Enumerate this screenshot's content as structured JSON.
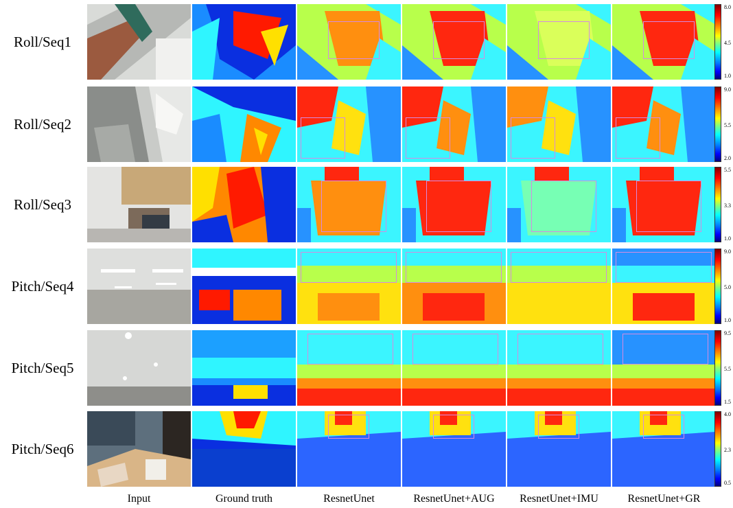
{
  "columns": [
    "Input",
    "Ground truth",
    "ResnetUnet",
    "ResnetUnet+AUG",
    "ResnetUnet+IMU",
    "ResnetUnet+GR"
  ],
  "rows": [
    {
      "label": "Roll/Seq1",
      "ticks": [
        "8.0",
        "4.5",
        "1.0"
      ]
    },
    {
      "label": "Roll/Seq2",
      "ticks": [
        "9.0",
        "5.5",
        "2.0"
      ]
    },
    {
      "label": "Roll/Seq3",
      "ticks": [
        "5.5",
        "3.3",
        "1.0"
      ]
    },
    {
      "label": "Pitch/Seq4",
      "ticks": [
        "9.0",
        "5.0",
        "1.0"
      ]
    },
    {
      "label": "Pitch/Seq5",
      "ticks": [
        "9.5",
        "5.5",
        "1.5"
      ]
    },
    {
      "label": "Pitch/Seq6",
      "ticks": [
        "4.0",
        "2.3",
        "0.5"
      ]
    }
  ],
  "colors": {
    "highlight_box": "#d58be0"
  }
}
